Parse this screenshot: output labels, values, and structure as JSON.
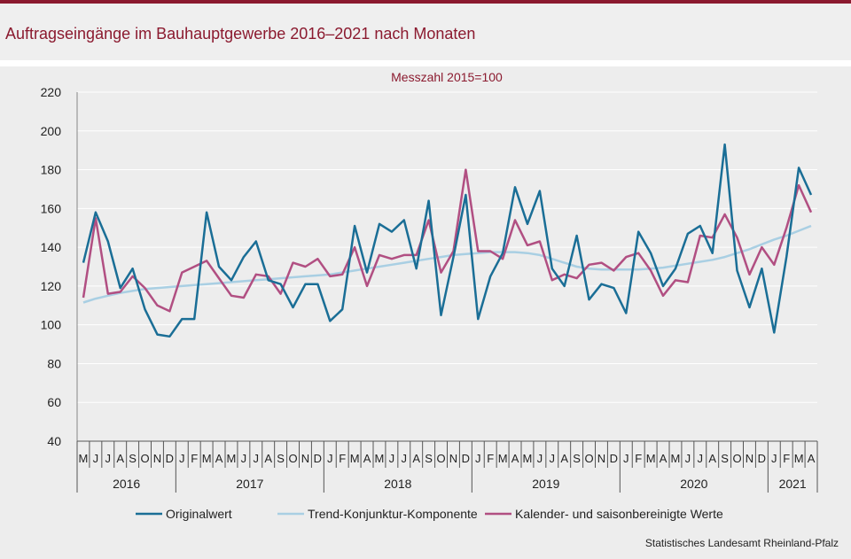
{
  "header": {
    "title": "Auftragseingänge im Bauhauptgewerbe 2016–2021 nach Monaten"
  },
  "footer": {
    "source": "Statistisches Landesamt  Rheinland-Pfalz"
  },
  "colors": {
    "accent": "#8b1a2f",
    "original": "#1a6e96",
    "trend": "#a9cfe3",
    "adjusted": "#b14f82"
  },
  "chart_data": {
    "type": "line",
    "subtitle": "Messzahl  2015=100",
    "ylim": [
      40,
      220
    ],
    "yticks": [
      40,
      60,
      80,
      100,
      120,
      140,
      160,
      180,
      200,
      220
    ],
    "grid": true,
    "legend_position": "bottom",
    "x": [
      "M",
      "J",
      "J",
      "A",
      "S",
      "O",
      "N",
      "D",
      "J",
      "F",
      "M",
      "A",
      "M",
      "J",
      "J",
      "A",
      "S",
      "O",
      "N",
      "D",
      "J",
      "F",
      "M",
      "A",
      "M",
      "J",
      "J",
      "A",
      "S",
      "O",
      "N",
      "D",
      "J",
      "F",
      "M",
      "A",
      "M",
      "J",
      "J",
      "A",
      "S",
      "O",
      "N",
      "D",
      "J",
      "F",
      "M",
      "A",
      "M",
      "J",
      "J",
      "A",
      "S",
      "O",
      "N",
      "D",
      "J",
      "F",
      "M",
      "A"
    ],
    "years": [
      {
        "label": "2016",
        "start": 0,
        "count": 8
      },
      {
        "label": "2017",
        "start": 8,
        "count": 12
      },
      {
        "label": "2018",
        "start": 20,
        "count": 12
      },
      {
        "label": "2019",
        "start": 32,
        "count": 12
      },
      {
        "label": "2020",
        "start": 44,
        "count": 12
      },
      {
        "label": "2021",
        "start": 56,
        "count": 4
      }
    ],
    "series": [
      {
        "name": "Originalwert",
        "values": [
          132,
          158,
          143,
          119,
          129,
          108,
          95,
          94,
          103,
          103,
          158,
          130,
          123,
          135,
          143,
          123,
          121,
          109,
          121,
          121,
          102,
          108,
          151,
          127,
          152,
          148,
          154,
          129,
          164,
          105,
          135,
          167,
          103,
          125,
          137,
          171,
          152,
          169,
          129,
          120,
          146,
          113,
          121,
          119,
          106,
          148,
          137,
          120,
          129,
          147,
          151,
          137,
          193,
          128,
          109,
          129,
          96,
          135,
          181,
          167
        ]
      },
      {
        "name": "Trend-Konjunktur-Komponente",
        "values": [
          111.5,
          113.5,
          115,
          116.5,
          117.5,
          118.5,
          119,
          119.5,
          120,
          120.5,
          121,
          121.5,
          122,
          122.5,
          123,
          123.5,
          124,
          124.5,
          125,
          125.5,
          126,
          127,
          128,
          129,
          130,
          131,
          132,
          133,
          134,
          135,
          136,
          136.5,
          137,
          137.5,
          137.5,
          137.5,
          137,
          136,
          134,
          132,
          130,
          129,
          128.5,
          128.5,
          128.5,
          128.5,
          129,
          129.5,
          130.5,
          131.5,
          132.5,
          133.5,
          135,
          137,
          139,
          141.5,
          144,
          146,
          148.5,
          151
        ]
      },
      {
        "name": "Kalender- und saisonbereinigte Werte",
        "values": [
          114,
          155,
          116,
          117,
          125,
          119,
          110,
          107,
          127,
          130,
          133,
          124,
          115,
          114,
          126,
          125,
          116,
          132,
          130,
          134,
          125,
          126,
          140,
          120,
          136,
          134,
          136,
          136,
          154,
          127,
          138,
          180,
          138,
          138,
          134,
          154,
          141,
          143,
          123,
          126,
          124,
          131,
          132,
          128,
          135,
          137,
          128,
          115,
          123,
          122,
          146,
          145,
          157,
          145,
          126,
          140,
          131,
          150,
          172,
          158
        ]
      }
    ]
  }
}
